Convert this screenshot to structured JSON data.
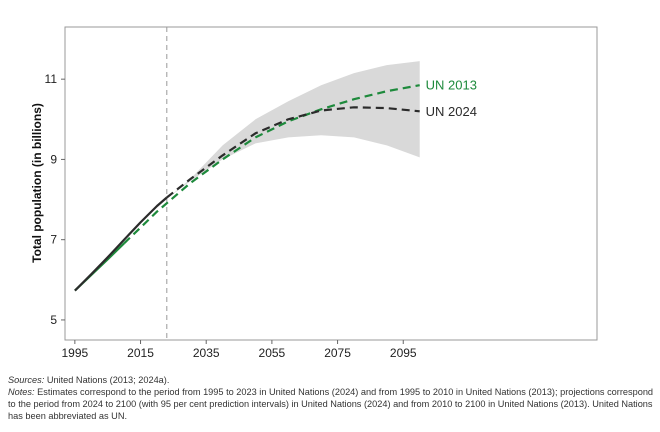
{
  "chart_data": {
    "type": "line",
    "ylabel": "Total population (in billions)",
    "xlabel": "",
    "xlim": [
      1992,
      2154
    ],
    "ylim": [
      4.5,
      12.3
    ],
    "x_ticks": [
      1995,
      2015,
      2035,
      2055,
      2075,
      2095
    ],
    "y_ticks": [
      5,
      7,
      9,
      11
    ],
    "grid": false,
    "reference_line": {
      "x": 2023,
      "style": "dashed"
    },
    "band": {
      "series": "UN 2024",
      "description": "95 per cent prediction interval",
      "x": [
        2023,
        2030,
        2040,
        2050,
        2060,
        2070,
        2080,
        2090,
        2100
      ],
      "lower": [
        8.02,
        8.45,
        9.0,
        9.4,
        9.55,
        9.6,
        9.55,
        9.35,
        9.05
      ],
      "upper": [
        8.02,
        8.5,
        9.35,
        10.0,
        10.45,
        10.85,
        11.15,
        11.35,
        11.45
      ]
    },
    "series": [
      {
        "name": "UN 2024",
        "color": "#2b2b2b",
        "estimates": {
          "x": [
            1995,
            2000,
            2005,
            2010,
            2015,
            2020,
            2023
          ],
          "y": [
            5.73,
            6.14,
            6.56,
            7.0,
            7.43,
            7.84,
            8.05
          ]
        },
        "projection": {
          "x": [
            2023,
            2030,
            2040,
            2050,
            2060,
            2070,
            2080,
            2090,
            2100
          ],
          "y": [
            8.05,
            8.5,
            9.1,
            9.65,
            10.0,
            10.22,
            10.3,
            10.28,
            10.2
          ]
        }
      },
      {
        "name": "UN 2013",
        "color": "#1e8a3c",
        "estimates": {
          "x": [
            1995,
            2000,
            2005,
            2010
          ],
          "y": [
            5.73,
            6.12,
            6.51,
            6.91
          ]
        },
        "projection": {
          "x": [
            2010,
            2015,
            2020,
            2030,
            2040,
            2050,
            2060,
            2070,
            2080,
            2090,
            2100
          ],
          "y": [
            6.91,
            7.3,
            7.7,
            8.4,
            9.0,
            9.55,
            9.95,
            10.25,
            10.5,
            10.7,
            10.85
          ]
        }
      }
    ],
    "band_color": "#d9d9d9",
    "frame_color": "#999999"
  },
  "notes": {
    "sources_label": "Sources:",
    "sources_text": " United Nations (2013; 2024a).",
    "notes_label": "Notes:",
    "notes_text": " Estimates correspond to the period from 1995 to 2023 in United Nations (2024) and from 1995 to 2010 in United Nations (2013); projections correspond to the period from 2024 to 2100 (with 95 per cent prediction intervals) in United Nations (2024) and from 2010 to 2100 in United Nations (2013). United Nations has been abbreviated as UN."
  }
}
